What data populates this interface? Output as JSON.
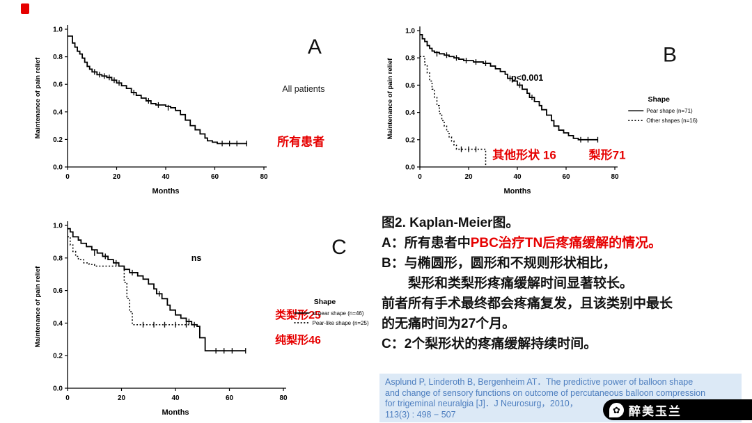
{
  "colors": {
    "red_accent": "#e60000",
    "curve_color": "#000000",
    "citation_bg": "#dce9f6",
    "citation_text": "#4d7ebf",
    "watermark_bg": "#000000",
    "watermark_text": "#ffffff"
  },
  "caption": {
    "line1": "图2. Kaplan-Meier图。",
    "line2_black": "A：所有患者中",
    "line2_red": "PBC治疗TN后疼痛缓解的情况。",
    "line3": "B：与椭圆形，圆形和不规则形状相比，",
    "line4": "梨形和类梨形疼痛缓解时间显著较长。",
    "line5": "前者所有手术最终都会疼痛复发，且该类别中最长",
    "line6": "的无痛时间为27个月。",
    "line7": "C：2个梨形状的疼痛缓解持续时间。"
  },
  "citation": {
    "lines": [
      "Asplund P,  Linderoth B,  Bergenheim AT．The predictive power of balloon shape",
      "and change of sensory  functions on outcome of percutaneous balloon compression",
      "for trigeminal neuralgia [J]．J Neurosurg，2010，",
      "113(3) : 498 − 507"
    ]
  },
  "watermark": {
    "label": "醉美玉兰",
    "icon": "flower-bubble-icon"
  },
  "chart_data": [
    {
      "id": "A",
      "type": "line",
      "subtype": "kaplan-meier-step",
      "size": [
        470,
        288
      ],
      "margins": {
        "l": 62,
        "r": 126,
        "t": 34,
        "b": 56
      },
      "xlabel": "Months",
      "ylabel": "Maintenance of pain relief",
      "xlim": [
        0,
        80
      ],
      "ylim": [
        0,
        1.0
      ],
      "xticks": [
        0,
        20,
        40,
        60,
        80
      ],
      "yticks": [
        0,
        0.2,
        0.4,
        0.6,
        0.8,
        1.0
      ],
      "grid": false,
      "panel_label": "A",
      "panel_label_pos": {
        "fx": 0.887,
        "fy": 0.24,
        "size": 30
      },
      "series": [
        {
          "name": "All patients",
          "line": "solid",
          "points": [
            [
              0,
              0.95
            ],
            [
              2,
              0.9
            ],
            [
              3,
              0.87
            ],
            [
              4,
              0.84
            ],
            [
              5,
              0.82
            ],
            [
              6,
              0.79
            ],
            [
              7,
              0.76
            ],
            [
              8,
              0.73
            ],
            [
              9,
              0.71
            ],
            [
              10,
              0.69
            ],
            [
              12,
              0.67
            ],
            [
              14,
              0.66
            ],
            [
              16,
              0.65
            ],
            [
              18,
              0.63
            ],
            [
              20,
              0.61
            ],
            [
              22,
              0.59
            ],
            [
              24,
              0.57
            ],
            [
              26,
              0.54
            ],
            [
              28,
              0.52
            ],
            [
              30,
              0.5
            ],
            [
              32,
              0.48
            ],
            [
              34,
              0.46
            ],
            [
              36,
              0.45
            ],
            [
              40,
              0.44
            ],
            [
              42,
              0.43
            ],
            [
              44,
              0.41
            ],
            [
              46,
              0.38
            ],
            [
              48,
              0.34
            ],
            [
              50,
              0.3
            ],
            [
              52,
              0.27
            ],
            [
              54,
              0.24
            ],
            [
              56,
              0.21
            ],
            [
              57,
              0.19
            ],
            [
              59,
              0.18
            ],
            [
              61,
              0.17
            ],
            [
              73,
              0.17
            ]
          ],
          "censors": [
            [
              11,
              0.69
            ],
            [
              13,
              0.67
            ],
            [
              15,
              0.66
            ],
            [
              17,
              0.65
            ],
            [
              19,
              0.63
            ],
            [
              21,
              0.61
            ],
            [
              27,
              0.54
            ],
            [
              33,
              0.48
            ],
            [
              37,
              0.45
            ],
            [
              41,
              0.43
            ],
            [
              63,
              0.17
            ],
            [
              66,
              0.17
            ],
            [
              69,
              0.17
            ],
            [
              73,
              0.17
            ]
          ]
        }
      ],
      "annotations": [
        {
          "text": "All patients",
          "fx": 0.853,
          "fy": 0.43,
          "size": 12.5,
          "color": "#222222",
          "weight": "normal"
        },
        {
          "text": "所有患者",
          "fx": 0.845,
          "fy": 0.7,
          "size": 17,
          "color": "#e60000",
          "weight": "bold"
        }
      ]
    },
    {
      "id": "B",
      "type": "line",
      "subtype": "kaplan-meier-step",
      "size": [
        520,
        288
      ],
      "margins": {
        "l": 58,
        "r": 182,
        "t": 36,
        "b": 56
      },
      "xlabel": "Months",
      "ylabel": "Maintenance of pain relief",
      "xlim": [
        0,
        80
      ],
      "ylim": [
        0,
        1.0
      ],
      "xticks": [
        0,
        20,
        40,
        60,
        80
      ],
      "yticks": [
        0,
        0.2,
        0.4,
        0.6,
        0.8,
        1.0
      ],
      "grid": false,
      "panel_label": "B",
      "panel_label_pos": {
        "fx": 0.802,
        "fy": 0.28,
        "size": 30
      },
      "legend": {
        "title": "Shape",
        "fx": 0.687,
        "fy": 0.48,
        "entries": [
          {
            "label": "Pear shape (n=71)",
            "line": "solid"
          },
          {
            "label": "Other shapes (n=16)",
            "line": "dotted"
          }
        ]
      },
      "series": [
        {
          "name": "Pear shape (n=71)",
          "line": "solid",
          "points": [
            [
              0,
              0.97
            ],
            [
              1,
              0.94
            ],
            [
              2,
              0.92
            ],
            [
              3,
              0.89
            ],
            [
              4,
              0.87
            ],
            [
              5,
              0.85
            ],
            [
              6,
              0.84
            ],
            [
              8,
              0.83
            ],
            [
              10,
              0.82
            ],
            [
              12,
              0.81
            ],
            [
              14,
              0.8
            ],
            [
              16,
              0.79
            ],
            [
              18,
              0.78
            ],
            [
              22,
              0.77
            ],
            [
              26,
              0.76
            ],
            [
              29,
              0.74
            ],
            [
              31,
              0.72
            ],
            [
              33,
              0.7
            ],
            [
              35,
              0.68
            ],
            [
              36,
              0.65
            ],
            [
              38,
              0.63
            ],
            [
              40,
              0.6
            ],
            [
              42,
              0.57
            ],
            [
              44,
              0.54
            ],
            [
              45,
              0.51
            ],
            [
              47,
              0.48
            ],
            [
              49,
              0.45
            ],
            [
              50,
              0.42
            ],
            [
              52,
              0.38
            ],
            [
              54,
              0.34
            ],
            [
              55,
              0.3
            ],
            [
              57,
              0.27
            ],
            [
              59,
              0.25
            ],
            [
              61,
              0.23
            ],
            [
              63,
              0.21
            ],
            [
              65,
              0.2
            ],
            [
              73,
              0.2
            ]
          ],
          "censors": [
            [
              7,
              0.83
            ],
            [
              11,
              0.82
            ],
            [
              15,
              0.8
            ],
            [
              19,
              0.78
            ],
            [
              23,
              0.77
            ],
            [
              27,
              0.76
            ],
            [
              37,
              0.65
            ],
            [
              41,
              0.6
            ],
            [
              46,
              0.51
            ],
            [
              66,
              0.2
            ],
            [
              69,
              0.2
            ],
            [
              73,
              0.2
            ]
          ]
        },
        {
          "name": "Other shapes (n=16)",
          "line": "dotted",
          "points": [
            [
              0,
              0.81
            ],
            [
              2,
              0.75
            ],
            [
              3,
              0.69
            ],
            [
              4,
              0.63
            ],
            [
              5,
              0.57
            ],
            [
              6,
              0.51
            ],
            [
              7,
              0.45
            ],
            [
              8,
              0.39
            ],
            [
              9,
              0.34
            ],
            [
              10,
              0.3
            ],
            [
              11,
              0.26
            ],
            [
              12,
              0.22
            ],
            [
              13,
              0.19
            ],
            [
              14,
              0.16
            ],
            [
              15,
              0.13
            ],
            [
              26,
              0.13
            ],
            [
              27,
              0
            ]
          ],
          "censors": [
            [
              17,
              0.13
            ],
            [
              20,
              0.13
            ],
            [
              23,
              0.13
            ]
          ]
        }
      ],
      "annotations": [
        {
          "text": "p<0.001",
          "fx": 0.408,
          "fy": 0.375,
          "size": 12.5,
          "color": "#000000",
          "weight": "bold"
        },
        {
          "text": "其他形状 16",
          "fx": 0.4,
          "fy": 0.765,
          "size": 17,
          "color": "#e60000",
          "weight": "bold"
        },
        {
          "text": "梨形71",
          "fx": 0.629,
          "fy": 0.765,
          "size": 17,
          "color": "#e60000",
          "weight": "bold"
        }
      ]
    },
    {
      "id": "C",
      "type": "line",
      "subtype": "kaplan-meier-step",
      "size": [
        500,
        308
      ],
      "margins": {
        "l": 62,
        "r": 128,
        "t": 26,
        "b": 48
      },
      "xlabel": "Months",
      "ylabel": "Maintenance of pain relief",
      "xlim": [
        0,
        80
      ],
      "ylim": [
        0,
        1.0
      ],
      "xticks": [
        0,
        20,
        40,
        60,
        80
      ],
      "yticks": [
        0,
        0.2,
        0.4,
        0.6,
        0.8,
        1.0
      ],
      "grid": false,
      "panel_label": "C",
      "panel_label_pos": {
        "fx": 0.904,
        "fy": 0.218,
        "size": 30
      },
      "legend": {
        "title": "Shape",
        "fx": 0.775,
        "fy": 0.451,
        "entries": [
          {
            "label": "st pear shape (n=46)",
            "line": "solid"
          },
          {
            "label": "Pear-like shape (n=25)",
            "line": "dotted"
          }
        ]
      },
      "series": [
        {
          "name": "Pear shape (n=46)",
          "line": "solid",
          "points": [
            [
              0,
              0.98
            ],
            [
              1,
              0.96
            ],
            [
              2,
              0.93
            ],
            [
              4,
              0.91
            ],
            [
              5,
              0.89
            ],
            [
              7,
              0.87
            ],
            [
              9,
              0.85
            ],
            [
              11,
              0.83
            ],
            [
              13,
              0.81
            ],
            [
              15,
              0.79
            ],
            [
              17,
              0.77
            ],
            [
              19,
              0.75
            ],
            [
              21,
              0.73
            ],
            [
              23,
              0.71
            ],
            [
              26,
              0.69
            ],
            [
              28,
              0.67
            ],
            [
              30,
              0.64
            ],
            [
              32,
              0.61
            ],
            [
              33,
              0.58
            ],
            [
              35,
              0.55
            ],
            [
              37,
              0.51
            ],
            [
              38,
              0.48
            ],
            [
              40,
              0.45
            ],
            [
              42,
              0.43
            ],
            [
              44,
              0.41
            ],
            [
              46,
              0.39
            ],
            [
              48,
              0.38
            ],
            [
              49,
              0.31
            ],
            [
              51,
              0.23
            ],
            [
              66,
              0.23
            ]
          ],
          "censors": [
            [
              10,
              0.83
            ],
            [
              14,
              0.81
            ],
            [
              18,
              0.77
            ],
            [
              24,
              0.71
            ],
            [
              34,
              0.58
            ],
            [
              45,
              0.41
            ],
            [
              55,
              0.23
            ],
            [
              58,
              0.23
            ],
            [
              61,
              0.23
            ],
            [
              66,
              0.23
            ]
          ]
        },
        {
          "name": "Pear-like shape (n=25)",
          "line": "dotted",
          "points": [
            [
              0,
              0.93
            ],
            [
              1,
              0.88
            ],
            [
              2,
              0.84
            ],
            [
              3,
              0.81
            ],
            [
              4,
              0.79
            ],
            [
              6,
              0.77
            ],
            [
              8,
              0.76
            ],
            [
              10,
              0.75
            ],
            [
              20,
              0.75
            ],
            [
              21,
              0.65
            ],
            [
              22,
              0.55
            ],
            [
              23,
              0.47
            ],
            [
              24,
              0.39
            ],
            [
              47,
              0.39
            ]
          ],
          "censors": [
            [
              28,
              0.39
            ],
            [
              32,
              0.39
            ],
            [
              36,
              0.39
            ],
            [
              40,
              0.39
            ],
            [
              44,
              0.39
            ],
            [
              47,
              0.39
            ]
          ]
        }
      ],
      "annotations": [
        {
          "text": "ns",
          "fx": 0.494,
          "fy": 0.25,
          "size": 12.5,
          "color": "#000000",
          "weight": "bold"
        },
        {
          "text": "类梨形25",
          "fx": 0.786,
          "fy": 0.519,
          "size": 16,
          "color": "#e60000",
          "weight": "bold"
        },
        {
          "text": "纯梨形46",
          "fx": 0.786,
          "fy": 0.636,
          "size": 16,
          "color": "#e60000",
          "weight": "bold"
        }
      ]
    }
  ]
}
